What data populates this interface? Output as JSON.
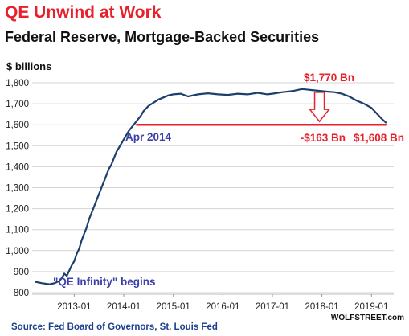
{
  "title": "QE Unwind at Work",
  "subtitle": "Federal Reserve, Mortgage-Backed Securities",
  "chart_data": {
    "type": "line",
    "title": "QE Unwind at Work",
    "subtitle": "Federal Reserve, Mortgage-Backed Securities",
    "ylabel": "$ billions",
    "ylim": [
      800,
      1800
    ],
    "yticks": [
      800,
      900,
      1000,
      1100,
      1200,
      1300,
      1400,
      1500,
      1600,
      1700,
      1800
    ],
    "ytick_labels": [
      "800",
      "900",
      "1,000",
      "1,100",
      "1,200",
      "1,300",
      "1,400",
      "1,500",
      "1,600",
      "1,700",
      "1,800"
    ],
    "xlim": [
      2012.15,
      2019.45
    ],
    "xticks": [
      2013.0,
      2014.0,
      2015.0,
      2016.0,
      2017.0,
      2018.0,
      2019.0
    ],
    "xtick_labels": [
      "2013-01",
      "2014-01",
      "2015-01",
      "2016-01",
      "2017-01",
      "2018-01",
      "2019-01"
    ],
    "grid": "horizontal",
    "series": [
      {
        "color": "#1d3f6e",
        "x": [
          2012.2,
          2012.35,
          2012.5,
          2012.6,
          2012.7,
          2012.75,
          2012.8,
          2012.85,
          2012.9,
          2012.95,
          2013.0,
          2013.05,
          2013.1,
          2013.15,
          2013.2,
          2013.25,
          2013.3,
          2013.35,
          2013.4,
          2013.45,
          2013.5,
          2013.55,
          2013.6,
          2013.65,
          2013.7,
          2013.75,
          2013.8,
          2013.85,
          2013.9,
          2013.95,
          2014.0,
          2014.05,
          2014.1,
          2014.15,
          2014.2,
          2014.25,
          2014.3,
          2014.35,
          2014.4,
          2014.5,
          2014.6,
          2014.7,
          2014.8,
          2014.9,
          2015.0,
          2015.15,
          2015.3,
          2015.5,
          2015.7,
          2015.9,
          2016.1,
          2016.3,
          2016.5,
          2016.7,
          2016.9,
          2017.0,
          2017.2,
          2017.4,
          2017.5,
          2017.6,
          2017.8,
          2018.0,
          2018.1,
          2018.25,
          2018.4,
          2018.55,
          2018.7,
          2018.85,
          2019.0,
          2019.1,
          2019.2,
          2019.3
        ],
        "y": [
          852,
          845,
          840,
          845,
          855,
          870,
          890,
          880,
          905,
          930,
          950,
          985,
          1010,
          1050,
          1080,
          1110,
          1150,
          1180,
          1210,
          1240,
          1270,
          1300,
          1330,
          1360,
          1390,
          1410,
          1440,
          1470,
          1490,
          1510,
          1530,
          1550,
          1570,
          1585,
          1600,
          1615,
          1630,
          1645,
          1665,
          1690,
          1705,
          1720,
          1730,
          1740,
          1745,
          1748,
          1735,
          1745,
          1750,
          1745,
          1742,
          1748,
          1745,
          1752,
          1745,
          1748,
          1755,
          1760,
          1765,
          1770,
          1765,
          1760,
          1758,
          1755,
          1748,
          1735,
          1715,
          1700,
          1680,
          1655,
          1630,
          1608
        ]
      }
    ],
    "annotations": [
      {
        "text": "$1,770 Bn",
        "x": 2017.6,
        "y": 1770,
        "color": "#e8202a"
      },
      {
        "text": "$1,608 Bn",
        "x": 2019.3,
        "y": 1608,
        "color": "#e8202a"
      },
      {
        "text": "-$163 Bn",
        "color": "#e8202a"
      },
      {
        "text": "Apr 2014",
        "x": 2014.25,
        "y": 1600,
        "color": "#3b3fa8"
      },
      {
        "text": "\"QE Infinity\" begins",
        "x": 2012.7,
        "y": 845,
        "color": "#3b3fa8"
      }
    ],
    "reference_line": {
      "y": 1600,
      "x_start": 2014.25,
      "x_end": 2019.3,
      "color": "#e8202a"
    },
    "arrow": {
      "x": 2017.95,
      "y_start": 1770,
      "y_end": 1608,
      "color": "#e8202a"
    }
  },
  "source": "Source: Fed Board of Governors, St. Louis Fed",
  "watermark": "WOLFSTREET.com"
}
